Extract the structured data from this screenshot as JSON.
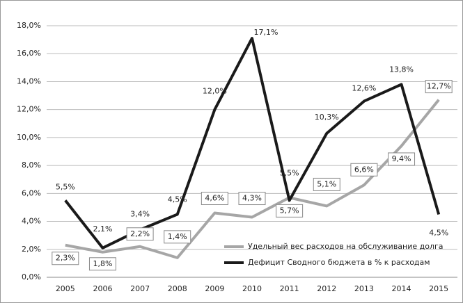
{
  "chart_data": {
    "type": "line",
    "categories": [
      "2005",
      "2006",
      "2007",
      "2008",
      "2009",
      "2010",
      "2011",
      "2012",
      "2013",
      "2014",
      "2015"
    ],
    "series": [
      {
        "name": "Удельный вес расходов на обслуживание долга",
        "color": "#a6a6a6",
        "values": [
          2.3,
          1.8,
          2.2,
          1.4,
          4.6,
          4.3,
          5.7,
          5.1,
          6.6,
          9.4,
          12.7
        ],
        "value_labels": [
          "2,3%",
          "1,8%",
          "2,2%",
          "1,4%",
          "4,6%",
          "4,3%",
          "5,7%",
          "5,1%",
          "6,6%",
          "9,4%",
          "12,7%"
        ]
      },
      {
        "name": "Дефицит Сводного бюджета в % к расходам",
        "color": "#1a1a1a",
        "values": [
          5.5,
          2.1,
          3.4,
          4.5,
          12.0,
          17.1,
          5.5,
          10.3,
          12.6,
          13.8,
          4.5
        ],
        "value_labels": [
          "5,5%",
          "2,1%",
          "3,4%",
          "4,5%",
          "12,0%",
          "17,1%",
          "5,5%",
          "10,3%",
          "12,6%",
          "13,8%",
          "4,5%"
        ]
      }
    ],
    "ylim": [
      0,
      18
    ],
    "yticks": [
      {
        "value": 0,
        "label": "0,0%"
      },
      {
        "value": 2,
        "label": "2,0%"
      },
      {
        "value": 4,
        "label": "4,0%"
      },
      {
        "value": 6,
        "label": "6,0%"
      },
      {
        "value": 8,
        "label": "8,0%"
      },
      {
        "value": 10,
        "label": "10,0%"
      },
      {
        "value": 12,
        "label": "12,0%"
      },
      {
        "value": 14,
        "label": "14,0%"
      },
      {
        "value": 16,
        "label": "16,0%"
      },
      {
        "value": 18,
        "label": "18,0%"
      }
    ],
    "grid": true,
    "legend": "lower right"
  }
}
